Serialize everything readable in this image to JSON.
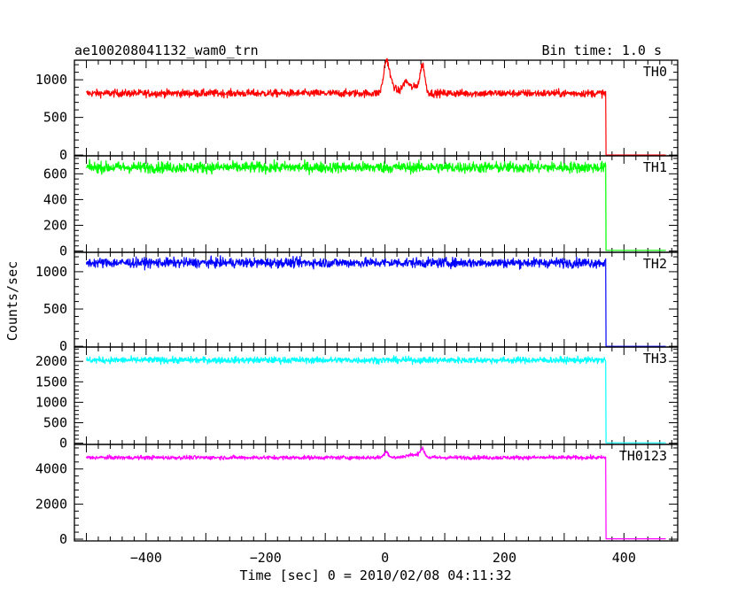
{
  "chart_data": {
    "type": "line",
    "title": "ae100208041132_wam0_trn",
    "bin_time_label": "Bin time: 1.0 s",
    "xlabel": "Time [sec] 0 = 2010/02/08 04:11:32",
    "ylabel": "Counts/sec",
    "xlim": [
      -520,
      490
    ],
    "x_ticks": [
      -400,
      -200,
      0,
      200,
      400
    ],
    "x_tick_labels": [
      "−400",
      "−200",
      "0",
      "200",
      "400"
    ],
    "x_start": -500,
    "x_drop": 370,
    "x_end": 470,
    "panels": [
      {
        "name": "TH0",
        "color": "#ff0000",
        "ylim": [
          -10,
          1260
        ],
        "y_ticks": [
          0,
          500,
          1000
        ],
        "y_tick_labels": [
          "0",
          "500",
          "1000"
        ],
        "level": 820,
        "noise": 35,
        "after_drop": 0,
        "features": [
          {
            "x": 2,
            "height": 340,
            "width": 6
          },
          {
            "x": 8,
            "height": 150,
            "width": 10
          },
          {
            "x": 35,
            "height": 150,
            "width": 8
          },
          {
            "x": 63,
            "height": 320,
            "width": 5
          },
          {
            "x": 55,
            "height": 100,
            "width": 12
          }
        ]
      },
      {
        "name": "TH1",
        "color": "#00ff00",
        "ylim": [
          -10,
          740
        ],
        "y_ticks": [
          0,
          200,
          400,
          600
        ],
        "y_tick_labels": [
          "0",
          "200",
          "400",
          "600"
        ],
        "level": 650,
        "noise": 30,
        "after_drop": 5,
        "features": []
      },
      {
        "name": "TH2",
        "color": "#0000ff",
        "ylim": [
          -10,
          1260
        ],
        "y_ticks": [
          0,
          500,
          1000
        ],
        "y_tick_labels": [
          "0",
          "500",
          "1000"
        ],
        "level": 1120,
        "noise": 45,
        "after_drop": 0,
        "features": []
      },
      {
        "name": "TH3",
        "color": "#00ffff",
        "ylim": [
          -30,
          2350
        ],
        "y_ticks": [
          0,
          500,
          1000,
          1500,
          2000
        ],
        "y_tick_labels": [
          "0",
          "500",
          "1000",
          "1500",
          "2000"
        ],
        "level": 2030,
        "noise": 55,
        "after_drop": 10,
        "features": []
      },
      {
        "name": "TH0123",
        "color": "#ff00ff",
        "ylim": [
          -100,
          5400
        ],
        "y_ticks": [
          0,
          2000,
          4000
        ],
        "y_tick_labels": [
          "0",
          "2000",
          "4000"
        ],
        "level": 4650,
        "noise": 80,
        "after_drop": 20,
        "features": [
          {
            "x": 2,
            "height": 350,
            "width": 5
          },
          {
            "x": 62,
            "height": 450,
            "width": 6
          },
          {
            "x": 45,
            "height": 150,
            "width": 15
          }
        ]
      }
    ]
  }
}
